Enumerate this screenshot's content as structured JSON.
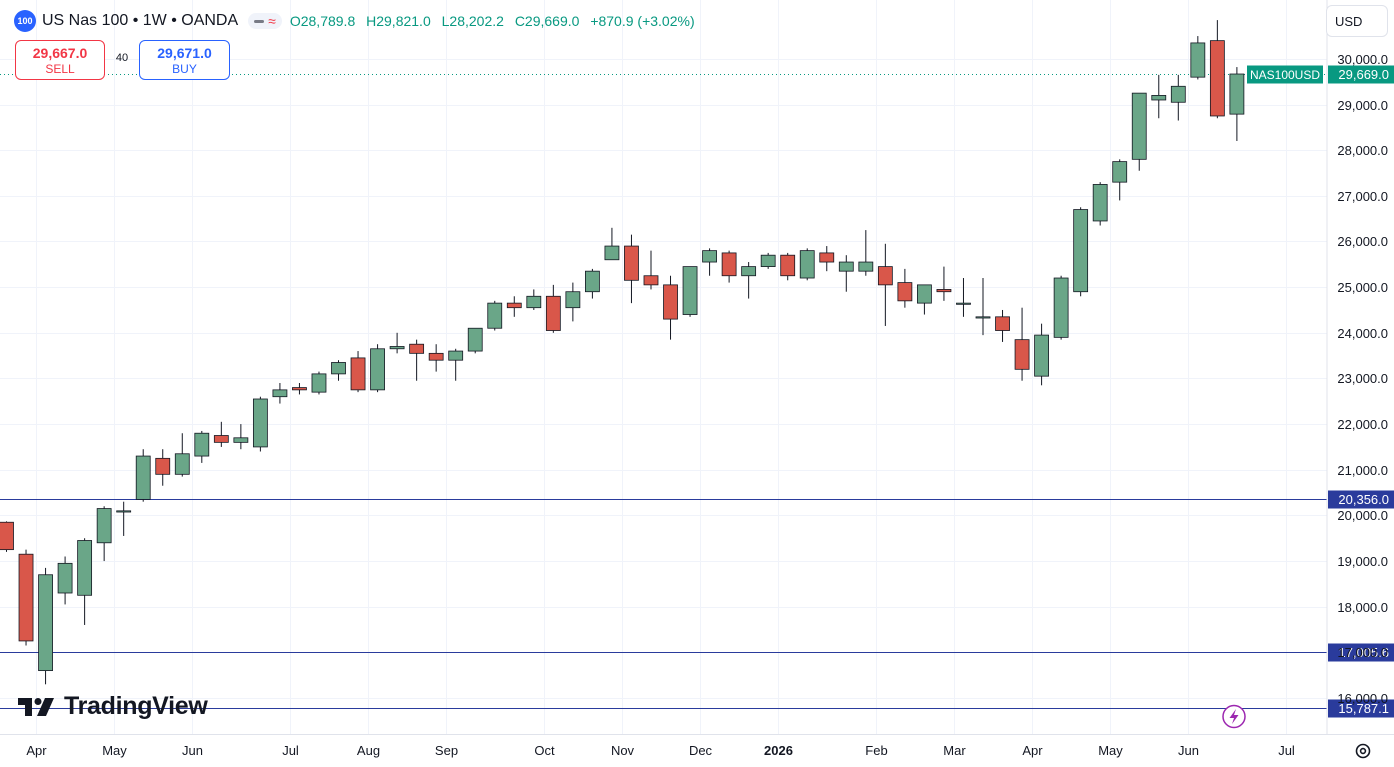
{
  "header": {
    "symbol_badge": "100",
    "title": "US Nas 100 • 1W • OANDA",
    "ohlc": {
      "open": "O28,789.8",
      "high": "H29,821.0",
      "low": "L28,202.2",
      "close": "C29,669.0",
      "change": "+870.9 (+3.02%)"
    }
  },
  "trade": {
    "sell_price": "29,667.0",
    "sell_label": "SELL",
    "spread": "40",
    "buy_price": "29,671.0",
    "buy_label": "BUY"
  },
  "currency": "USD",
  "logo_text": "TradingView",
  "colors": {
    "up": "#089981",
    "up_fill": "#6aa688",
    "down": "#f23645",
    "down_fill": "#d9574a",
    "line": "#2a3b9c",
    "accent": "#2962ff"
  },
  "chart_data": {
    "type": "candlestick",
    "symbol_label": "NAS100USD",
    "current_price": 29669.0,
    "current_price_label": "29,669.0",
    "ylim": [
      15450,
      31500
    ],
    "y_ticks": [
      16000,
      17000,
      18000,
      19000,
      20000,
      21000,
      22000,
      23000,
      24000,
      25000,
      26000,
      27000,
      28000,
      29000,
      30000
    ],
    "y_tick_labels": [
      "16,000.0",
      "17,000.0",
      "18,000.0",
      "19,000.0",
      "20,000.0",
      "21,000.0",
      "22,000.0",
      "23,000.0",
      "24,000.0",
      "25,000.0",
      "26,000.0",
      "27,000.0",
      "28,000.0",
      "29,000.0",
      "30,000.0"
    ],
    "x_labels": [
      "Apr",
      "May",
      "Jun",
      "Jul",
      "Aug",
      "Sep",
      "Oct",
      "Nov",
      "Dec",
      "2026",
      "Feb",
      "Mar",
      "Apr",
      "May",
      "Jun",
      "Jul"
    ],
    "x_label_week_index": [
      1.5,
      5.5,
      9.5,
      14.5,
      18.5,
      22.5,
      27.5,
      31.5,
      35.5,
      39.5,
      44.5,
      48.5,
      52.5,
      56.5,
      60.5,
      65.5
    ],
    "bold_x_labels": [
      "2026"
    ],
    "horizontal_lines": [
      {
        "value": 20356.0,
        "label": "20,356.0"
      },
      {
        "value": 17005.6,
        "label": "17,005.6"
      },
      {
        "value": 15787.1,
        "label": "15,787.1"
      }
    ],
    "candles": [
      [
        19850,
        19870,
        19200,
        19250
      ],
      [
        19150,
        19250,
        17150,
        17250
      ],
      [
        16600,
        18850,
        16300,
        18700
      ],
      [
        18300,
        19100,
        18050,
        18950
      ],
      [
        18250,
        19500,
        17600,
        19450
      ],
      [
        19400,
        20200,
        19000,
        20150
      ],
      [
        20100,
        20300,
        19550,
        20100
      ],
      [
        20350,
        21450,
        20300,
        21300
      ],
      [
        21250,
        21450,
        20650,
        20900
      ],
      [
        20900,
        21800,
        20850,
        21350
      ],
      [
        21300,
        21850,
        21150,
        21800
      ],
      [
        21750,
        22050,
        21500,
        21600
      ],
      [
        21600,
        22000,
        21450,
        21700
      ],
      [
        21500,
        22600,
        21400,
        22550
      ],
      [
        22600,
        22900,
        22450,
        22750
      ],
      [
        22800,
        22900,
        22650,
        22750
      ],
      [
        22700,
        23150,
        22650,
        23100
      ],
      [
        23100,
        23400,
        22950,
        23350
      ],
      [
        23450,
        23600,
        22700,
        22750
      ],
      [
        22750,
        23750,
        22700,
        23650
      ],
      [
        23650,
        24000,
        23550,
        23700
      ],
      [
        23750,
        23850,
        22950,
        23550
      ],
      [
        23550,
        23750,
        23150,
        23400
      ],
      [
        23400,
        23650,
        22950,
        23600
      ],
      [
        23600,
        24100,
        23550,
        24100
      ],
      [
        24100,
        24700,
        24050,
        24650
      ],
      [
        24650,
        24800,
        24350,
        24550
      ],
      [
        24550,
        24950,
        24500,
        24800
      ],
      [
        24800,
        25050,
        24000,
        24050
      ],
      [
        24550,
        25100,
        24250,
        24900
      ],
      [
        24900,
        25400,
        24750,
        25350
      ],
      [
        25600,
        26300,
        25600,
        25900
      ],
      [
        25900,
        26150,
        24650,
        25150
      ],
      [
        25250,
        25800,
        24950,
        25050
      ],
      [
        25050,
        25250,
        23850,
        24300
      ],
      [
        24400,
        25450,
        24350,
        25450
      ],
      [
        25550,
        25850,
        25250,
        25800
      ],
      [
        25750,
        25800,
        25100,
        25250
      ],
      [
        25250,
        25550,
        24750,
        25450
      ],
      [
        25450,
        25750,
        25400,
        25700
      ],
      [
        25700,
        25750,
        25150,
        25250
      ],
      [
        25200,
        25850,
        25150,
        25800
      ],
      [
        25750,
        25900,
        25350,
        25550
      ],
      [
        25350,
        25700,
        24900,
        25550
      ],
      [
        25350,
        26250,
        25250,
        25550
      ],
      [
        25450,
        25950,
        24150,
        25050
      ],
      [
        25100,
        25400,
        24550,
        24700
      ],
      [
        24650,
        25050,
        24400,
        25050
      ],
      [
        24950,
        25450,
        24700,
        24900
      ],
      [
        24650,
        25200,
        24350,
        24650
      ],
      [
        24350,
        25200,
        23950,
        24350
      ],
      [
        24350,
        24500,
        23800,
        24050
      ],
      [
        23850,
        24550,
        22950,
        23200
      ],
      [
        23050,
        24200,
        22850,
        23950
      ],
      [
        23900,
        25250,
        23850,
        25200
      ],
      [
        24900,
        26750,
        24800,
        26700
      ],
      [
        26450,
        27300,
        26350,
        27250
      ],
      [
        27300,
        27800,
        26900,
        27750
      ],
      [
        27800,
        29250,
        27550,
        29250
      ],
      [
        29100,
        29650,
        28700,
        29200
      ],
      [
        29050,
        29650,
        28650,
        29400
      ],
      [
        29600,
        30500,
        29550,
        30350
      ],
      [
        30400,
        30850,
        28700,
        28750
      ],
      [
        28790,
        29821,
        28202,
        29669
      ]
    ]
  }
}
